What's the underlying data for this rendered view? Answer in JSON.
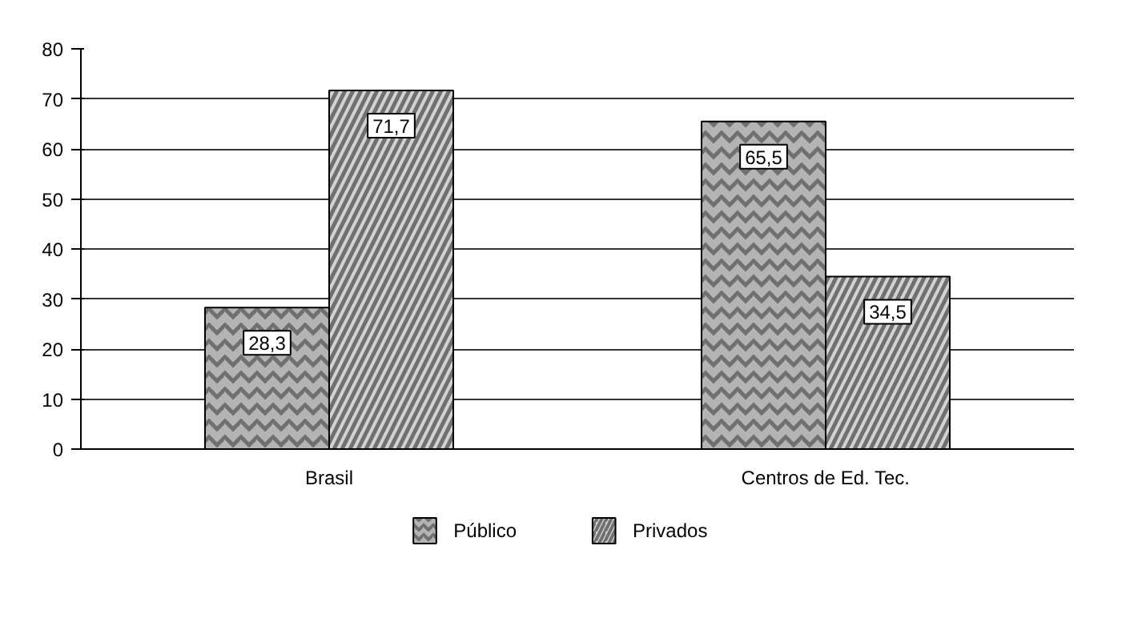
{
  "chart_data": {
    "type": "bar",
    "categories": [
      "Brasil",
      "Centros de Ed. Tec."
    ],
    "series": [
      {
        "name": "Público",
        "color": "#b4b4b4",
        "values": [
          28.3,
          65.5
        ],
        "value_labels": [
          "28,3",
          "65,5"
        ]
      },
      {
        "name": "Privados",
        "color": "#d2d2d2",
        "values": [
          71.7,
          34.5
        ],
        "value_labels": [
          "71,7",
          "34,5"
        ]
      }
    ],
    "ylim": [
      0,
      80
    ],
    "yticks": [
      0,
      10,
      20,
      30,
      40,
      50,
      60,
      70,
      80
    ],
    "grid": "y",
    "legend": "bottom"
  }
}
